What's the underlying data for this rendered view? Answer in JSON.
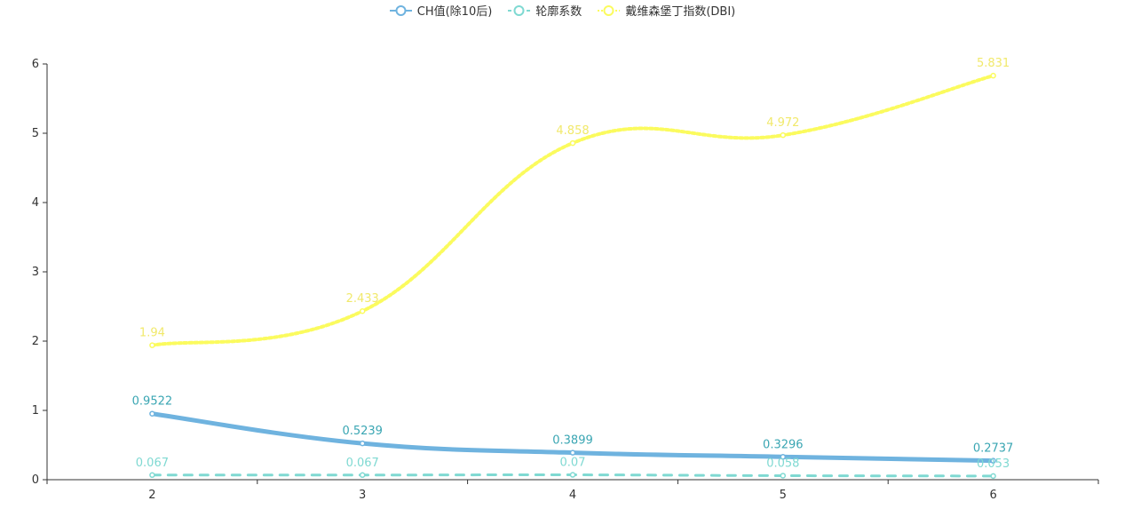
{
  "chart_data": {
    "type": "line",
    "x": [
      2,
      3,
      4,
      5,
      6
    ],
    "ylim": [
      0,
      6
    ],
    "yticks": [
      0,
      1,
      2,
      3,
      4,
      5,
      6
    ],
    "xlabel": "",
    "ylabel": "",
    "grid": false,
    "legend_position": "top-center",
    "series": [
      {
        "name": "CH值(除10后)",
        "values": [
          0.9522,
          0.5239,
          0.3899,
          0.3296,
          0.2737
        ],
        "labels": [
          "0.9522",
          "0.5239",
          "0.3899",
          "0.3296",
          "0.2737"
        ],
        "color": "#6fb3df",
        "label_color": "#3aa6b3",
        "style": "solid-thick"
      },
      {
        "name": "轮廓系数",
        "values": [
          0.067,
          0.067,
          0.07,
          0.058,
          0.053
        ],
        "labels": [
          "0.067",
          "0.067",
          "0.07",
          "0.058",
          "0.053"
        ],
        "color": "#7fd9d2",
        "label_color": "#7fd9d2",
        "style": "dashed"
      },
      {
        "name": "戴维森堡丁指数(DBI)",
        "values": [
          1.94,
          2.433,
          4.858,
          4.972,
          5.831
        ],
        "labels": [
          "1.94",
          "2.433",
          "4.858",
          "4.972",
          "5.831"
        ],
        "color": "#fbfb5e",
        "label_color": "#f1e96b",
        "style": "dotted"
      }
    ]
  }
}
